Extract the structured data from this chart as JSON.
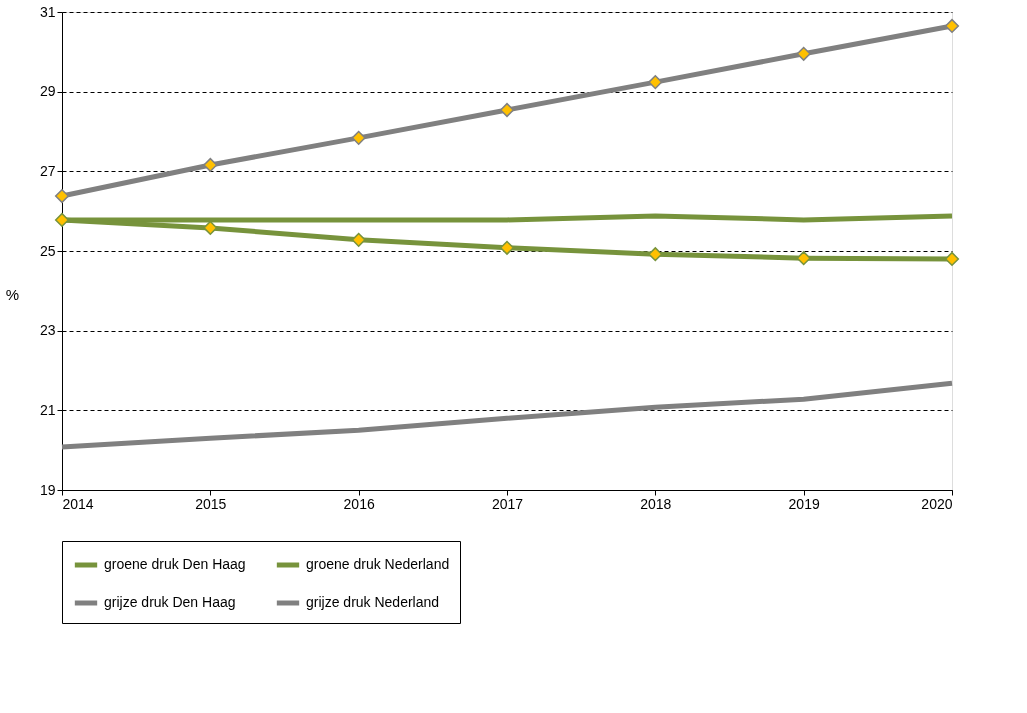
{
  "chart_data": {
    "type": "line",
    "ylabel": "%",
    "x": [
      2014,
      2015,
      2016,
      2017,
      2018,
      2019,
      2020
    ],
    "xlim": [
      2014,
      2020
    ],
    "xticks": [
      2014,
      2015,
      2016,
      2017,
      2018,
      2019,
      2020
    ],
    "ylim": [
      19,
      31
    ],
    "yticks": [
      19,
      21,
      23,
      25,
      27,
      29,
      31
    ],
    "grid": "y",
    "legend": "bottom",
    "line_style": "solid",
    "series": [
      {
        "name": "groene druk Den Haag",
        "color": "#77933c",
        "marker": "none",
        "values": [
          25.78,
          25.78,
          25.78,
          25.78,
          25.88,
          25.78,
          25.88
        ]
      },
      {
        "name": "groene druk Nederland",
        "color": "#77933c",
        "marker": "diamond",
        "values": [
          25.78,
          25.58,
          25.28,
          25.08,
          24.92,
          24.82,
          24.8
        ]
      },
      {
        "name": "grijze druk Den Haag",
        "color": "#808080",
        "marker": "none",
        "values": [
          20.08,
          20.3,
          20.5,
          20.8,
          21.08,
          21.28,
          21.68
        ]
      },
      {
        "name": "grijze druk Nederland",
        "color": "#808080",
        "marker": "diamond",
        "values": [
          26.38,
          27.16,
          27.84,
          28.54,
          29.24,
          29.95,
          30.65
        ]
      }
    ]
  }
}
